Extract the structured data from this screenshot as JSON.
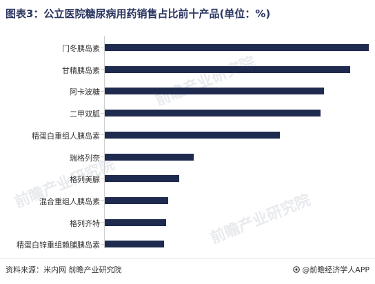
{
  "title": "图表3：公立医院糖尿病用药销售占比前十产品(单位：%)",
  "source": "资料来源：米内网 前瞻产业研究院",
  "brand": "@前瞻经济学人APP",
  "watermark_text": "前瞻产业研究院",
  "colors": {
    "bar": "#1f2a4f",
    "title": "#2b3560"
  },
  "chart_data": {
    "type": "bar",
    "orientation": "horizontal",
    "categories": [
      "门冬胰岛素",
      "甘精胰岛素",
      "阿卡波糖",
      "二甲双胍",
      "精蛋白重组人胰岛素",
      "瑞格列奈",
      "格列美脲",
      "混合重组人胰岛素",
      "格列齐特",
      "精蛋白锌重组赖脯胰岛素"
    ],
    "values": [
      14.2,
      13.2,
      11.8,
      11.6,
      9.4,
      4.8,
      4.0,
      3.4,
      3.3,
      3.2
    ],
    "title": "",
    "xlabel": "",
    "ylabel": "",
    "grid": false,
    "legend": "none"
  }
}
